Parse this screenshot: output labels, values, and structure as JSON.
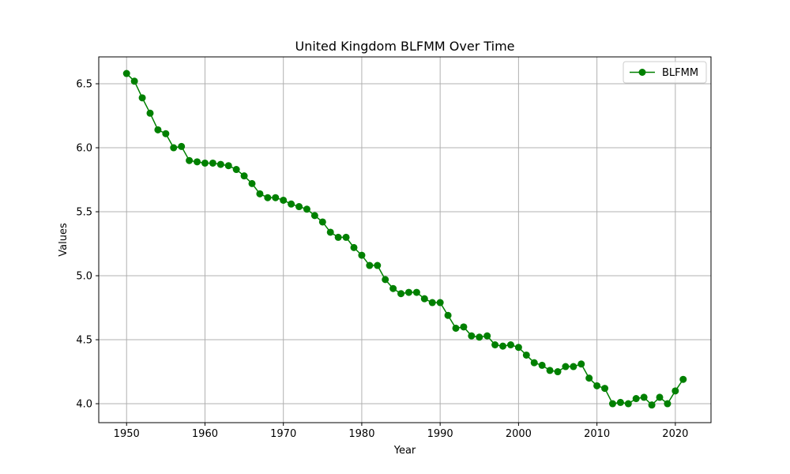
{
  "chart_data": {
    "type": "line",
    "title": "United Kingdom BLFMM Over Time",
    "xlabel": "Year",
    "ylabel": "Values",
    "xlim": [
      1946.45,
      2024.55
    ],
    "ylim": [
      3.852,
      6.71
    ],
    "xticks": [
      1950,
      1960,
      1970,
      1980,
      1990,
      2000,
      2010,
      2020
    ],
    "xtick_labels": [
      "1950",
      "1960",
      "1970",
      "1980",
      "1990",
      "2000",
      "2010",
      "2020"
    ],
    "yticks": [
      4.0,
      4.5,
      5.0,
      5.5,
      6.0,
      6.5
    ],
    "ytick_labels": [
      "4.0",
      "4.5",
      "5.0",
      "5.5",
      "6.0",
      "6.5"
    ],
    "grid": true,
    "legend_position": "top-right",
    "series": [
      {
        "name": "BLFMM",
        "color": "#008000",
        "marker": "circle",
        "x": [
          1950,
          1951,
          1952,
          1953,
          1954,
          1955,
          1956,
          1957,
          1958,
          1959,
          1960,
          1961,
          1962,
          1963,
          1964,
          1965,
          1966,
          1967,
          1968,
          1969,
          1970,
          1971,
          1972,
          1973,
          1974,
          1975,
          1976,
          1977,
          1978,
          1979,
          1980,
          1981,
          1982,
          1983,
          1984,
          1985,
          1986,
          1987,
          1988,
          1989,
          1990,
          1991,
          1992,
          1993,
          1994,
          1995,
          1996,
          1997,
          1998,
          1999,
          2000,
          2001,
          2002,
          2003,
          2004,
          2005,
          2006,
          2007,
          2008,
          2009,
          2010,
          2011,
          2012,
          2013,
          2014,
          2015,
          2016,
          2017,
          2018,
          2019,
          2020,
          2021
        ],
        "y": [
          6.58,
          6.52,
          6.39,
          6.27,
          6.14,
          6.11,
          6.0,
          6.01,
          5.9,
          5.89,
          5.88,
          5.88,
          5.87,
          5.86,
          5.83,
          5.78,
          5.72,
          5.64,
          5.61,
          5.61,
          5.59,
          5.56,
          5.54,
          5.52,
          5.47,
          5.42,
          5.34,
          5.3,
          5.3,
          5.22,
          5.16,
          5.08,
          5.08,
          4.97,
          4.9,
          4.86,
          4.87,
          4.87,
          4.82,
          4.79,
          4.79,
          4.69,
          4.59,
          4.6,
          4.53,
          4.52,
          4.53,
          4.46,
          4.45,
          4.46,
          4.44,
          4.38,
          4.32,
          4.3,
          4.26,
          4.25,
          4.29,
          4.29,
          4.31,
          4.2,
          4.14,
          4.12,
          4.0,
          4.01,
          4.0,
          4.04,
          4.05,
          3.99,
          4.05,
          4.0,
          4.1,
          4.19
        ]
      }
    ]
  }
}
